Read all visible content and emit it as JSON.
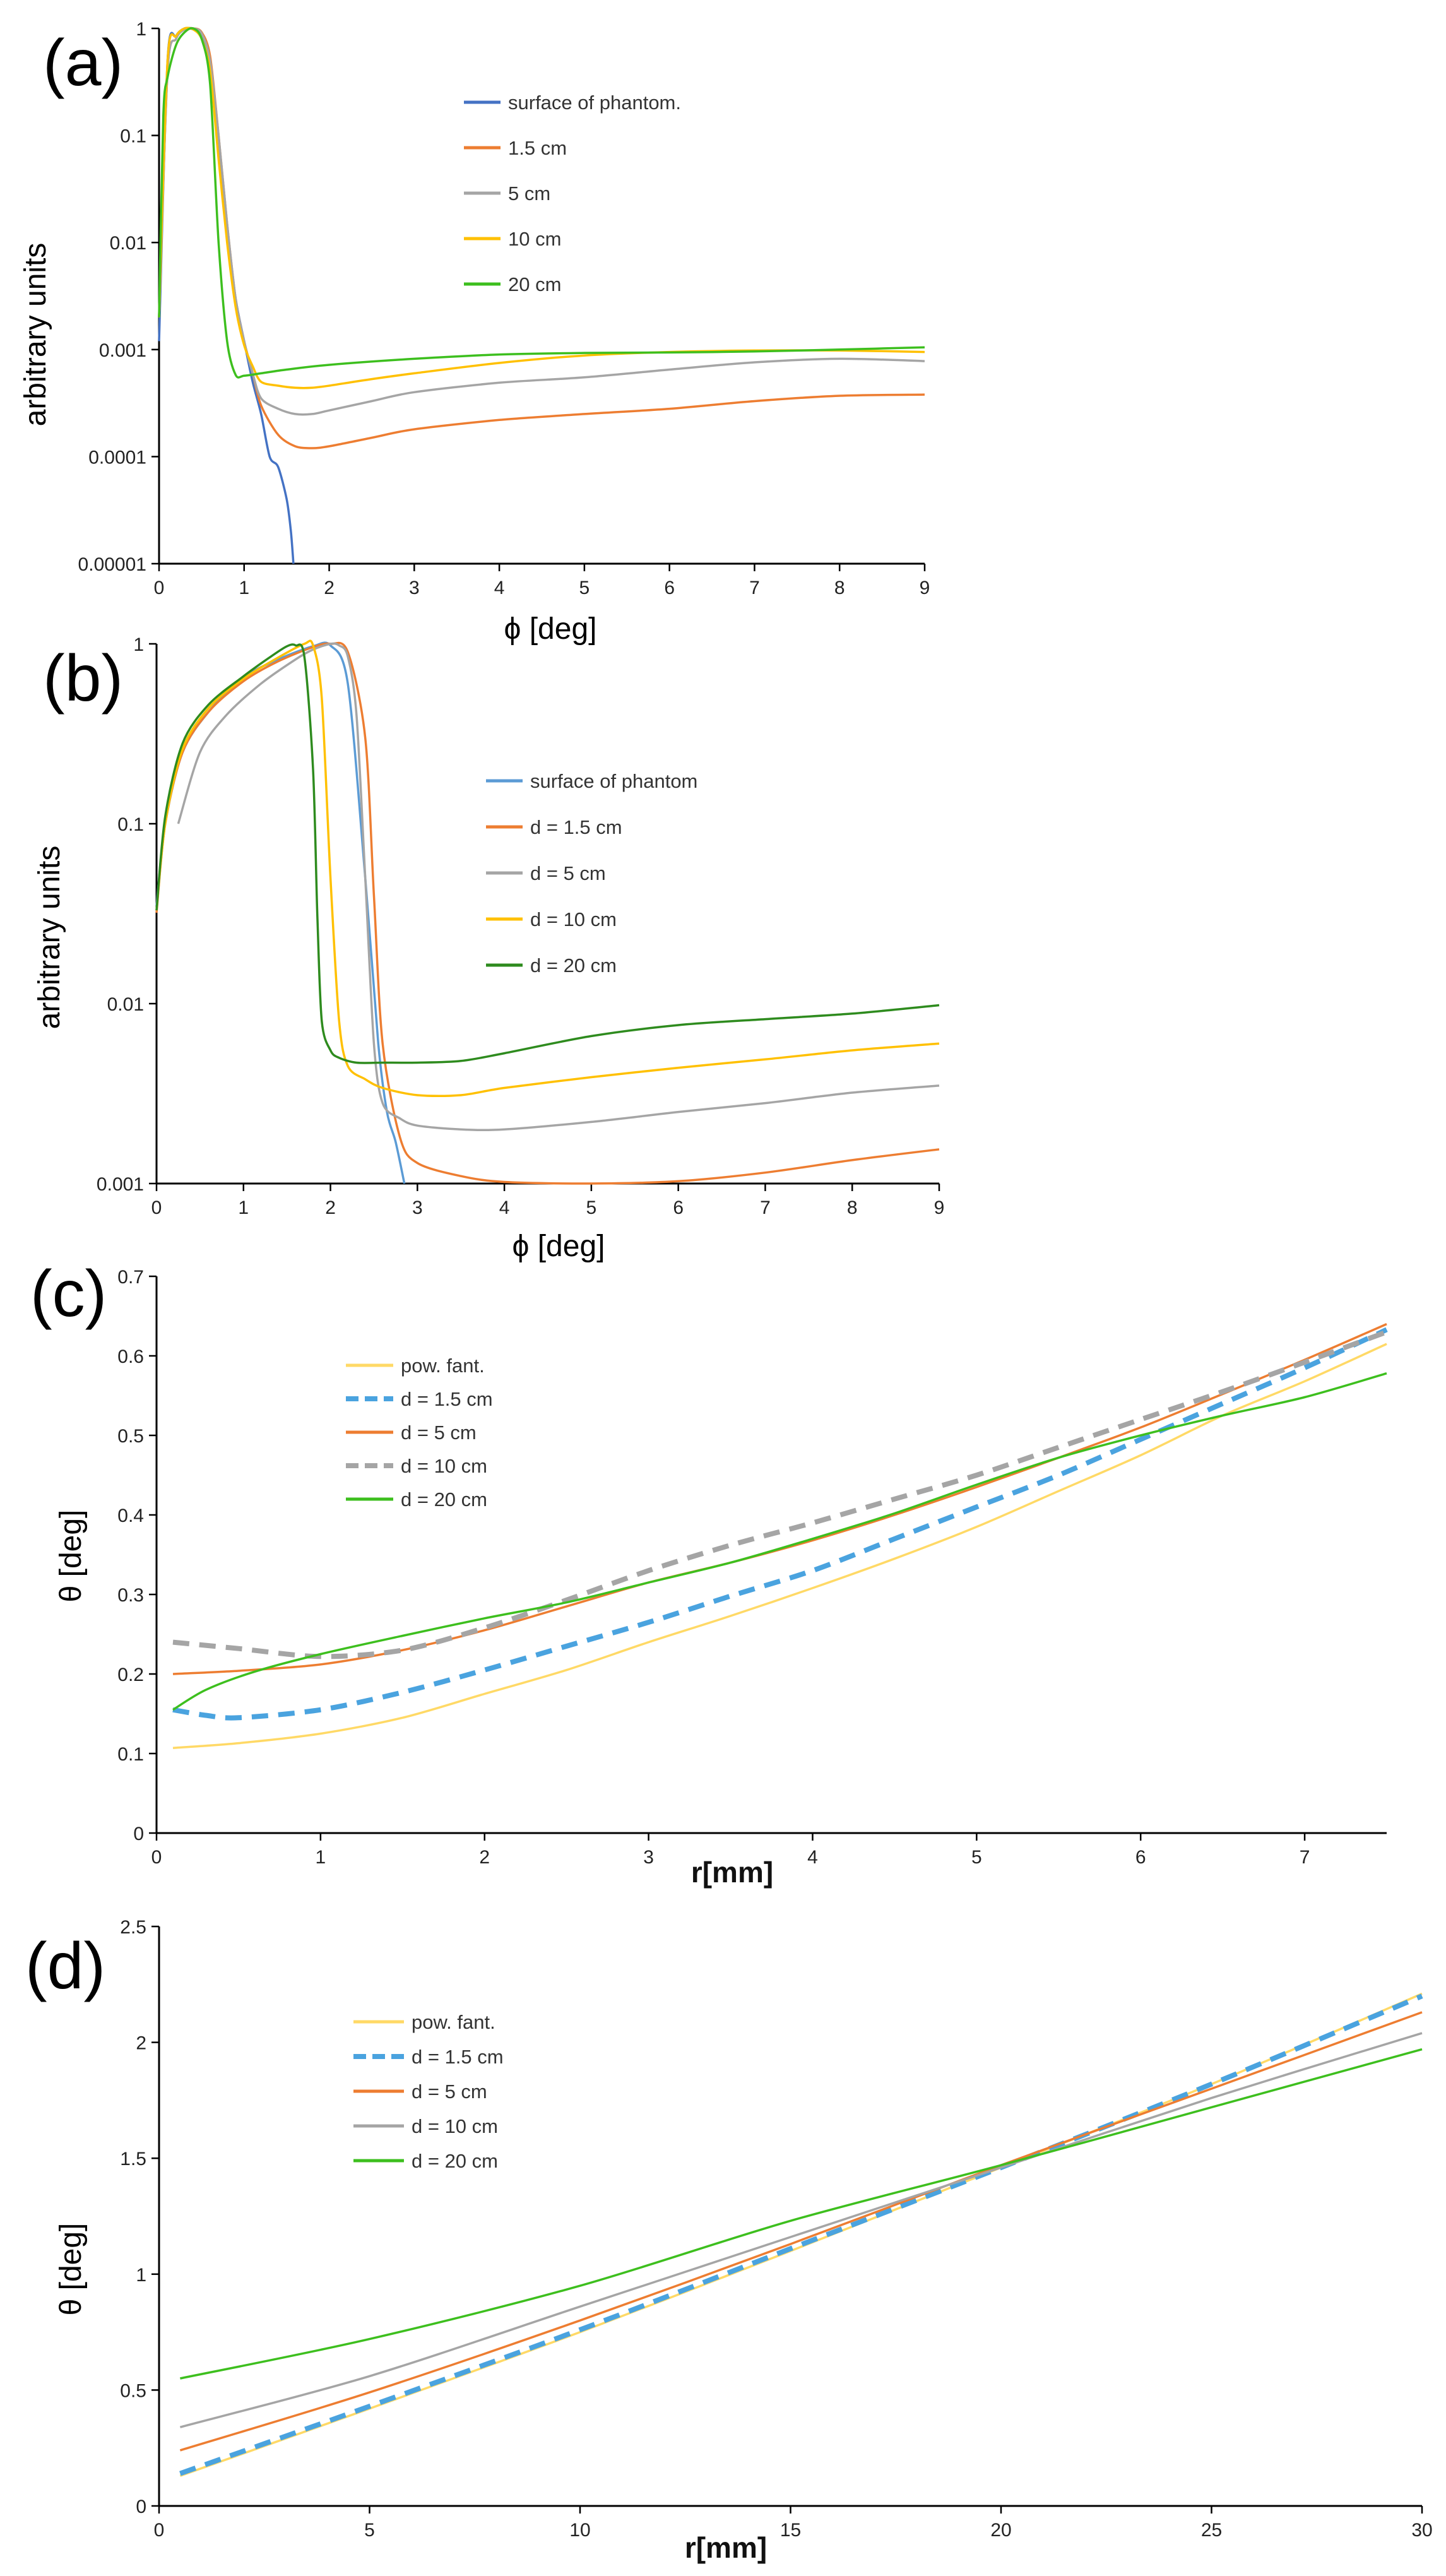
{
  "chart_data": [
    {
      "type": "line",
      "panel_label": "(a)",
      "xlabel": "ϕ [deg]",
      "ylabel": "arbitrary units",
      "xscale": "linear",
      "yscale": "log",
      "xlim": [
        0,
        9
      ],
      "ylim": [
        1e-05,
        1
      ],
      "xticks": [
        "0",
        "1",
        "2",
        "3",
        "4",
        "5",
        "6",
        "7",
        "8",
        "9"
      ],
      "yticks": [
        {
          "v": 1e-05,
          "label": "0.00001"
        },
        {
          "v": 0.0001,
          "label": "0.0001"
        },
        {
          "v": 0.001,
          "label": "0.001"
        },
        {
          "v": 0.01,
          "label": "0.01"
        },
        {
          "v": 0.1,
          "label": "0.1"
        },
        {
          "v": 1,
          "label": "1"
        }
      ],
      "legend_position": "upper-middle",
      "series": [
        {
          "name": "surface of phantom.",
          "color": "#4472C4",
          "dash": false,
          "x": [
            0,
            0.1,
            0.2,
            0.3,
            0.4,
            0.5,
            0.6,
            0.7,
            0.8,
            0.9,
            1.0,
            1.1,
            1.2,
            1.3,
            1.4,
            1.5,
            1.55,
            1.58
          ],
          "y": [
            0.0012,
            0.5,
            0.85,
            1,
            0.98,
            0.85,
            0.5,
            0.08,
            0.012,
            0.003,
            0.0012,
            0.0005,
            0.00025,
            0.0001,
            8e-05,
            4e-05,
            2e-05,
            1e-05
          ]
        },
        {
          "name": "1.5 cm",
          "color": "#ED7D31",
          "dash": false,
          "x": [
            0,
            0.1,
            0.2,
            0.3,
            0.4,
            0.5,
            0.6,
            0.7,
            0.8,
            0.9,
            1.0,
            1.1,
            1.2,
            1.4,
            1.6,
            1.8,
            2.0,
            2.5,
            3,
            4,
            5,
            6,
            7,
            8,
            9
          ],
          "y": [
            0.002,
            0.4,
            0.8,
            0.98,
            1,
            0.92,
            0.55,
            0.1,
            0.015,
            0.003,
            0.0012,
            0.0006,
            0.0003,
            0.00016,
            0.000125,
            0.00012,
            0.000125,
            0.00015,
            0.00018,
            0.00022,
            0.00025,
            0.00028,
            0.00033,
            0.00037,
            0.00038
          ]
        },
        {
          "name": "5 cm",
          "color": "#A5A5A5",
          "dash": false,
          "x": [
            0,
            0.1,
            0.2,
            0.3,
            0.4,
            0.5,
            0.6,
            0.7,
            0.8,
            0.9,
            1.0,
            1.1,
            1.2,
            1.4,
            1.6,
            1.8,
            2.0,
            2.5,
            3,
            4,
            5,
            6,
            7,
            8,
            9
          ],
          "y": [
            0.002,
            0.4,
            0.8,
            0.98,
            1,
            0.9,
            0.5,
            0.1,
            0.015,
            0.003,
            0.0012,
            0.0006,
            0.00035,
            0.00028,
            0.00025,
            0.00025,
            0.00027,
            0.00033,
            0.0004,
            0.00049,
            0.00055,
            0.00065,
            0.00076,
            0.00082,
            0.00078
          ]
        },
        {
          "name": "10 cm",
          "color": "#FFC000",
          "dash": false,
          "x": [
            0,
            0.1,
            0.2,
            0.3,
            0.4,
            0.5,
            0.6,
            0.7,
            0.8,
            0.9,
            1.0,
            1.1,
            1.2,
            1.4,
            1.6,
            1.8,
            2.0,
            2.5,
            3,
            4,
            5,
            6,
            7,
            8,
            9
          ],
          "y": [
            0.002,
            0.5,
            0.85,
            1,
            0.98,
            0.8,
            0.4,
            0.06,
            0.01,
            0.0025,
            0.0011,
            0.0007,
            0.0005,
            0.00046,
            0.00044,
            0.00044,
            0.00046,
            0.00053,
            0.0006,
            0.00075,
            0.00088,
            0.00095,
            0.00098,
            0.00098,
            0.00095
          ]
        },
        {
          "name": "20 cm",
          "color": "#3DBF1E",
          "dash": false,
          "x": [
            0,
            0.05,
            0.1,
            0.2,
            0.3,
            0.4,
            0.5,
            0.6,
            0.7,
            0.8,
            0.9,
            1.0,
            1.2,
            1.5,
            2,
            3,
            4,
            5,
            6,
            7,
            8,
            9
          ],
          "y": [
            0.002,
            0.15,
            0.35,
            0.7,
            0.92,
            1,
            0.8,
            0.3,
            0.01,
            0.0012,
            0.00058,
            0.00057,
            0.0006,
            0.00065,
            0.00072,
            0.00082,
            0.0009,
            0.00093,
            0.00094,
            0.00096,
            0.001,
            0.00105
          ]
        }
      ]
    },
    {
      "type": "line",
      "panel_label": "(b)",
      "xlabel": "ϕ [deg]",
      "ylabel": "arbitrary units",
      "xscale": "linear",
      "yscale": "log",
      "xlim": [
        0,
        9
      ],
      "ylim": [
        0.001,
        1
      ],
      "xticks": [
        "0",
        "1",
        "2",
        "3",
        "4",
        "5",
        "6",
        "7",
        "8",
        "9"
      ],
      "yticks": [
        {
          "v": 0.001,
          "label": "0.001"
        },
        {
          "v": 0.01,
          "label": "0.01"
        },
        {
          "v": 0.1,
          "label": "0.1"
        },
        {
          "v": 1,
          "label": "1"
        }
      ],
      "legend_position": "upper-middle",
      "series": [
        {
          "name": "surface of phantom",
          "color": "#5B9BD5",
          "dash": false,
          "x": [
            0,
            0.1,
            0.3,
            0.6,
            1.0,
            1.4,
            1.8,
            2.0,
            2.2,
            2.4,
            2.55,
            2.65,
            2.75,
            2.85
          ],
          "y": [
            0.035,
            0.1,
            0.25,
            0.42,
            0.65,
            0.82,
            0.97,
            0.98,
            0.6,
            0.05,
            0.006,
            0.0025,
            0.0017,
            0.001
          ]
        },
        {
          "name": "d = 1.5 cm",
          "color": "#ED7D31",
          "dash": false,
          "x": [
            0,
            0.1,
            0.3,
            0.6,
            1.0,
            1.4,
            1.8,
            2.0,
            2.2,
            2.4,
            2.5,
            2.6,
            2.8,
            3.0,
            3.5,
            4,
            5,
            6,
            7,
            8,
            9
          ],
          "y": [
            0.032,
            0.1,
            0.25,
            0.42,
            0.62,
            0.8,
            0.96,
            1,
            0.9,
            0.3,
            0.04,
            0.006,
            0.0018,
            0.0013,
            0.0011,
            0.00102,
            0.001,
            0.00103,
            0.00115,
            0.00135,
            0.00155
          ]
        },
        {
          "name": "d = 5 cm",
          "color": "#A5A5A5",
          "dash": false,
          "x": [
            0.25,
            0.5,
            0.8,
            1.2,
            1.6,
            1.8,
            2.0,
            2.1,
            2.2,
            2.3,
            2.4,
            2.5,
            2.6,
            2.8,
            3.0,
            3.5,
            4,
            5,
            6,
            7,
            8,
            9
          ],
          "y": [
            0.1,
            0.25,
            0.4,
            0.6,
            0.82,
            0.93,
            1,
            0.98,
            0.85,
            0.4,
            0.05,
            0.006,
            0.0028,
            0.0023,
            0.0021,
            0.002,
            0.002,
            0.0022,
            0.0025,
            0.0028,
            0.0032,
            0.0035
          ]
        },
        {
          "name": "d = 10 cm",
          "color": "#FFC000",
          "dash": false,
          "x": [
            0,
            0.1,
            0.3,
            0.6,
            1.0,
            1.4,
            1.7,
            1.8,
            1.9,
            2.0,
            2.1,
            2.2,
            2.4,
            2.6,
            3.0,
            3.5,
            4,
            5,
            6,
            7,
            8,
            9
          ],
          "y": [
            0.033,
            0.1,
            0.26,
            0.44,
            0.64,
            0.84,
            1,
            0.98,
            0.5,
            0.05,
            0.008,
            0.0045,
            0.0038,
            0.0034,
            0.0031,
            0.0031,
            0.0034,
            0.0039,
            0.0044,
            0.0049,
            0.0055,
            0.006
          ]
        },
        {
          "name": "d = 20 cm",
          "color": "#2E8B1E",
          "dash": false,
          "x": [
            0,
            0.1,
            0.3,
            0.6,
            1.0,
            1.3,
            1.5,
            1.6,
            1.7,
            1.8,
            1.85,
            1.9,
            2.0,
            2.1,
            2.3,
            2.6,
            3.0,
            3.5,
            4,
            5,
            6,
            7,
            8,
            9
          ],
          "y": [
            0.033,
            0.11,
            0.28,
            0.46,
            0.66,
            0.84,
            0.97,
            0.98,
            0.85,
            0.2,
            0.03,
            0.008,
            0.0055,
            0.005,
            0.0047,
            0.0047,
            0.0047,
            0.0048,
            0.0053,
            0.0066,
            0.0076,
            0.0082,
            0.0088,
            0.0098
          ]
        }
      ]
    },
    {
      "type": "line",
      "panel_label": "(c)",
      "xlabel": "r[mm]",
      "ylabel": "θ [deg]",
      "xscale": "linear",
      "yscale": "linear",
      "xlim": [
        0,
        7.5
      ],
      "ylim": [
        0,
        0.7
      ],
      "xticks": [
        "0",
        "1",
        "2",
        "3",
        "4",
        "5",
        "6",
        "7"
      ],
      "yticks": [
        {
          "v": 0,
          "label": "0"
        },
        {
          "v": 0.1,
          "label": "0.1"
        },
        {
          "v": 0.2,
          "label": "0.2"
        },
        {
          "v": 0.3,
          "label": "0.3"
        },
        {
          "v": 0.4,
          "label": "0.4"
        },
        {
          "v": 0.5,
          "label": "0.5"
        },
        {
          "v": 0.6,
          "label": "0.6"
        },
        {
          "v": 0.7,
          "label": "0.7"
        }
      ],
      "legend_position": "upper-left",
      "series": [
        {
          "name": "pow. fant.",
          "color": "#FFD966",
          "dash": false,
          "x": [
            0.1,
            0.5,
            1,
            1.5,
            2,
            2.5,
            3,
            3.5,
            4,
            4.5,
            5,
            5.5,
            6,
            6.5,
            7,
            7.5
          ],
          "y": [
            0.107,
            0.113,
            0.125,
            0.145,
            0.175,
            0.205,
            0.24,
            0.273,
            0.308,
            0.345,
            0.385,
            0.43,
            0.475,
            0.525,
            0.568,
            0.615
          ]
        },
        {
          "name": "d = 1.5 cm",
          "color": "#4AA3DF",
          "dash": true,
          "x": [
            0.1,
            0.3,
            0.5,
            1,
            1.5,
            2,
            2.5,
            3,
            3.5,
            4,
            4.5,
            5,
            5.5,
            6,
            6.5,
            7,
            7.5
          ],
          "y": [
            0.155,
            0.148,
            0.145,
            0.155,
            0.177,
            0.205,
            0.235,
            0.265,
            0.298,
            0.33,
            0.37,
            0.41,
            0.45,
            0.495,
            0.54,
            0.585,
            0.633
          ]
        },
        {
          "name": "d = 5 cm",
          "color": "#ED7D31",
          "dash": false,
          "x": [
            0.1,
            0.5,
            1,
            1.5,
            2,
            2.5,
            3,
            3.5,
            4,
            4.5,
            5,
            5.5,
            6,
            6.5,
            7,
            7.5
          ],
          "y": [
            0.2,
            0.204,
            0.212,
            0.23,
            0.255,
            0.285,
            0.315,
            0.34,
            0.368,
            0.4,
            0.435,
            0.472,
            0.51,
            0.552,
            0.595,
            0.64
          ]
        },
        {
          "name": "d = 10 cm",
          "color": "#A5A5A5",
          "dash": true,
          "x": [
            0.1,
            0.5,
            1,
            1.5,
            2,
            2.5,
            3,
            3.5,
            4,
            4.5,
            5,
            5.5,
            6,
            6.5,
            7,
            7.5
          ],
          "y": [
            0.24,
            0.232,
            0.222,
            0.23,
            0.258,
            0.293,
            0.33,
            0.362,
            0.39,
            0.42,
            0.45,
            0.485,
            0.52,
            0.555,
            0.592,
            0.63
          ]
        },
        {
          "name": "d = 20 cm",
          "color": "#3DBF1E",
          "dash": false,
          "x": [
            0.1,
            0.3,
            0.6,
            1,
            1.5,
            2,
            2.5,
            3,
            3.5,
            4,
            4.5,
            5,
            5.5,
            6,
            6.5,
            7,
            7.5
          ],
          "y": [
            0.155,
            0.18,
            0.203,
            0.225,
            0.248,
            0.27,
            0.29,
            0.315,
            0.34,
            0.37,
            0.402,
            0.438,
            0.472,
            0.5,
            0.525,
            0.548,
            0.578
          ]
        }
      ]
    },
    {
      "type": "line",
      "panel_label": "(d)",
      "xlabel": "r[mm]",
      "ylabel": "θ [deg]",
      "xscale": "linear",
      "yscale": "linear",
      "xlim": [
        0,
        30
      ],
      "ylim": [
        0,
        2.5
      ],
      "xticks": [
        "0",
        "5",
        "10",
        "15",
        "20",
        "25",
        "30"
      ],
      "yticks": [
        {
          "v": 0,
          "label": "0"
        },
        {
          "v": 0.5,
          "label": "0.5"
        },
        {
          "v": 1,
          "label": "1"
        },
        {
          "v": 1.5,
          "label": "1.5"
        },
        {
          "v": 2,
          "label": "2"
        },
        {
          "v": 2.5,
          "label": "2.5"
        }
      ],
      "legend_position": "upper-left",
      "series": [
        {
          "name": "pow. fant.",
          "color": "#FFD966",
          "dash": false,
          "x": [
            0.5,
            5,
            10,
            15,
            20,
            25,
            30
          ],
          "y": [
            0.13,
            0.42,
            0.75,
            1.1,
            1.46,
            1.82,
            2.21
          ]
        },
        {
          "name": "d = 1.5 cm",
          "color": "#4AA3DF",
          "dash": true,
          "x": [
            0.5,
            5,
            10,
            15,
            20,
            25,
            30
          ],
          "y": [
            0.14,
            0.43,
            0.76,
            1.11,
            1.46,
            1.82,
            2.2
          ]
        },
        {
          "name": "d = 5 cm",
          "color": "#ED7D31",
          "dash": false,
          "x": [
            0.5,
            5,
            10,
            15,
            20,
            25,
            30
          ],
          "y": [
            0.24,
            0.49,
            0.8,
            1.13,
            1.47,
            1.8,
            2.13
          ]
        },
        {
          "name": "d = 10 cm",
          "color": "#A5A5A5",
          "dash": false,
          "x": [
            0.5,
            5,
            10,
            15,
            20,
            25,
            30
          ],
          "y": [
            0.34,
            0.56,
            0.86,
            1.16,
            1.46,
            1.76,
            2.04
          ]
        },
        {
          "name": "d = 20 cm",
          "color": "#3DBF1E",
          "dash": false,
          "x": [
            0.5,
            5,
            10,
            15,
            20,
            25,
            30
          ],
          "y": [
            0.55,
            0.72,
            0.95,
            1.23,
            1.47,
            1.72,
            1.97
          ]
        }
      ]
    }
  ]
}
